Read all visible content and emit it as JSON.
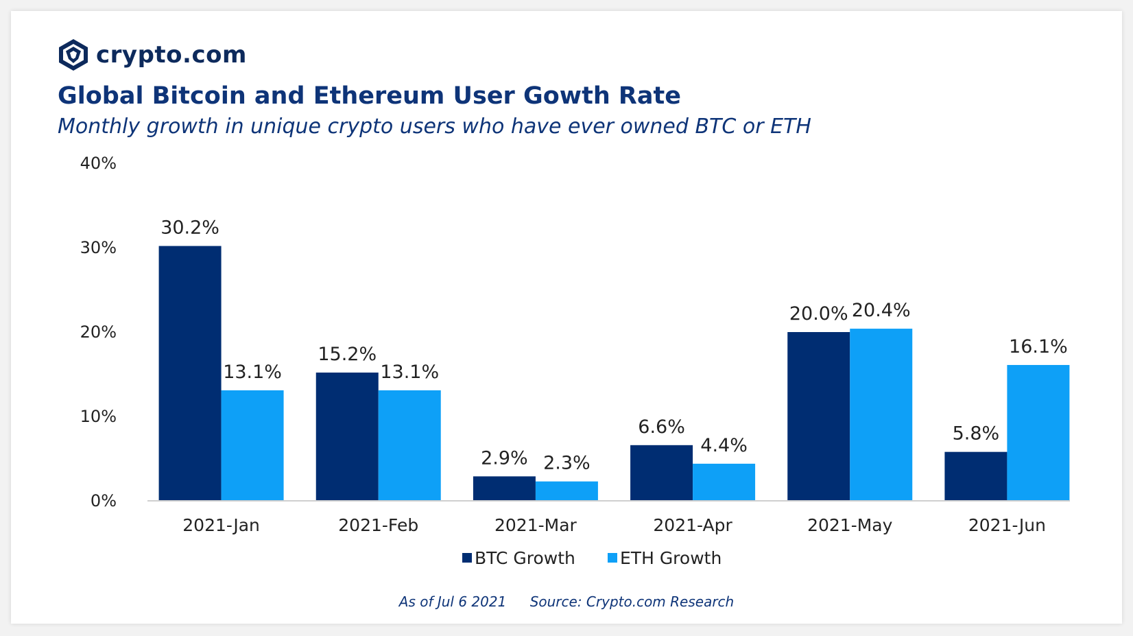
{
  "brand": {
    "name": "crypto.com",
    "color": "#0d2a5c"
  },
  "header": {
    "title": "Global Bitcoin and Ethereum User Gowth Rate",
    "subtitle": "Monthly growth in unique crypto users who have ever owned BTC or ETH"
  },
  "footer": {
    "date_note": "As of Jul 6 2021",
    "source": "Source: Crypto.com Research"
  },
  "chart_data": {
    "type": "bar",
    "title": "Global Bitcoin and Ethereum User Gowth Rate",
    "subtitle": "Monthly growth in unique crypto users who have ever owned BTC or ETH",
    "xlabel": "",
    "ylabel": "",
    "categories": [
      "2021-Jan",
      "2021-Feb",
      "2021-Mar",
      "2021-Apr",
      "2021-May",
      "2021-Jun"
    ],
    "series": [
      {
        "name": "BTC Growth",
        "color": "#002d72",
        "values": [
          30.2,
          15.2,
          2.9,
          6.6,
          20.0,
          5.8
        ],
        "labels": [
          "30.2%",
          "15.2%",
          "2.9%",
          "6.6%",
          "20.0%",
          "5.8%"
        ]
      },
      {
        "name": "ETH Growth",
        "color": "#0ea0f7",
        "values": [
          13.1,
          13.1,
          2.3,
          4.4,
          20.4,
          16.1
        ],
        "labels": [
          "13.1%",
          "13.1%",
          "2.3%",
          "4.4%",
          "20.4%",
          "16.1%"
        ]
      }
    ],
    "ylim": [
      0,
      40
    ],
    "yticks": [
      0,
      10,
      20,
      30,
      40
    ],
    "ytick_labels": [
      "0%",
      "10%",
      "20%",
      "30%",
      "40%"
    ],
    "grid": false,
    "legend": "bottom-center"
  }
}
